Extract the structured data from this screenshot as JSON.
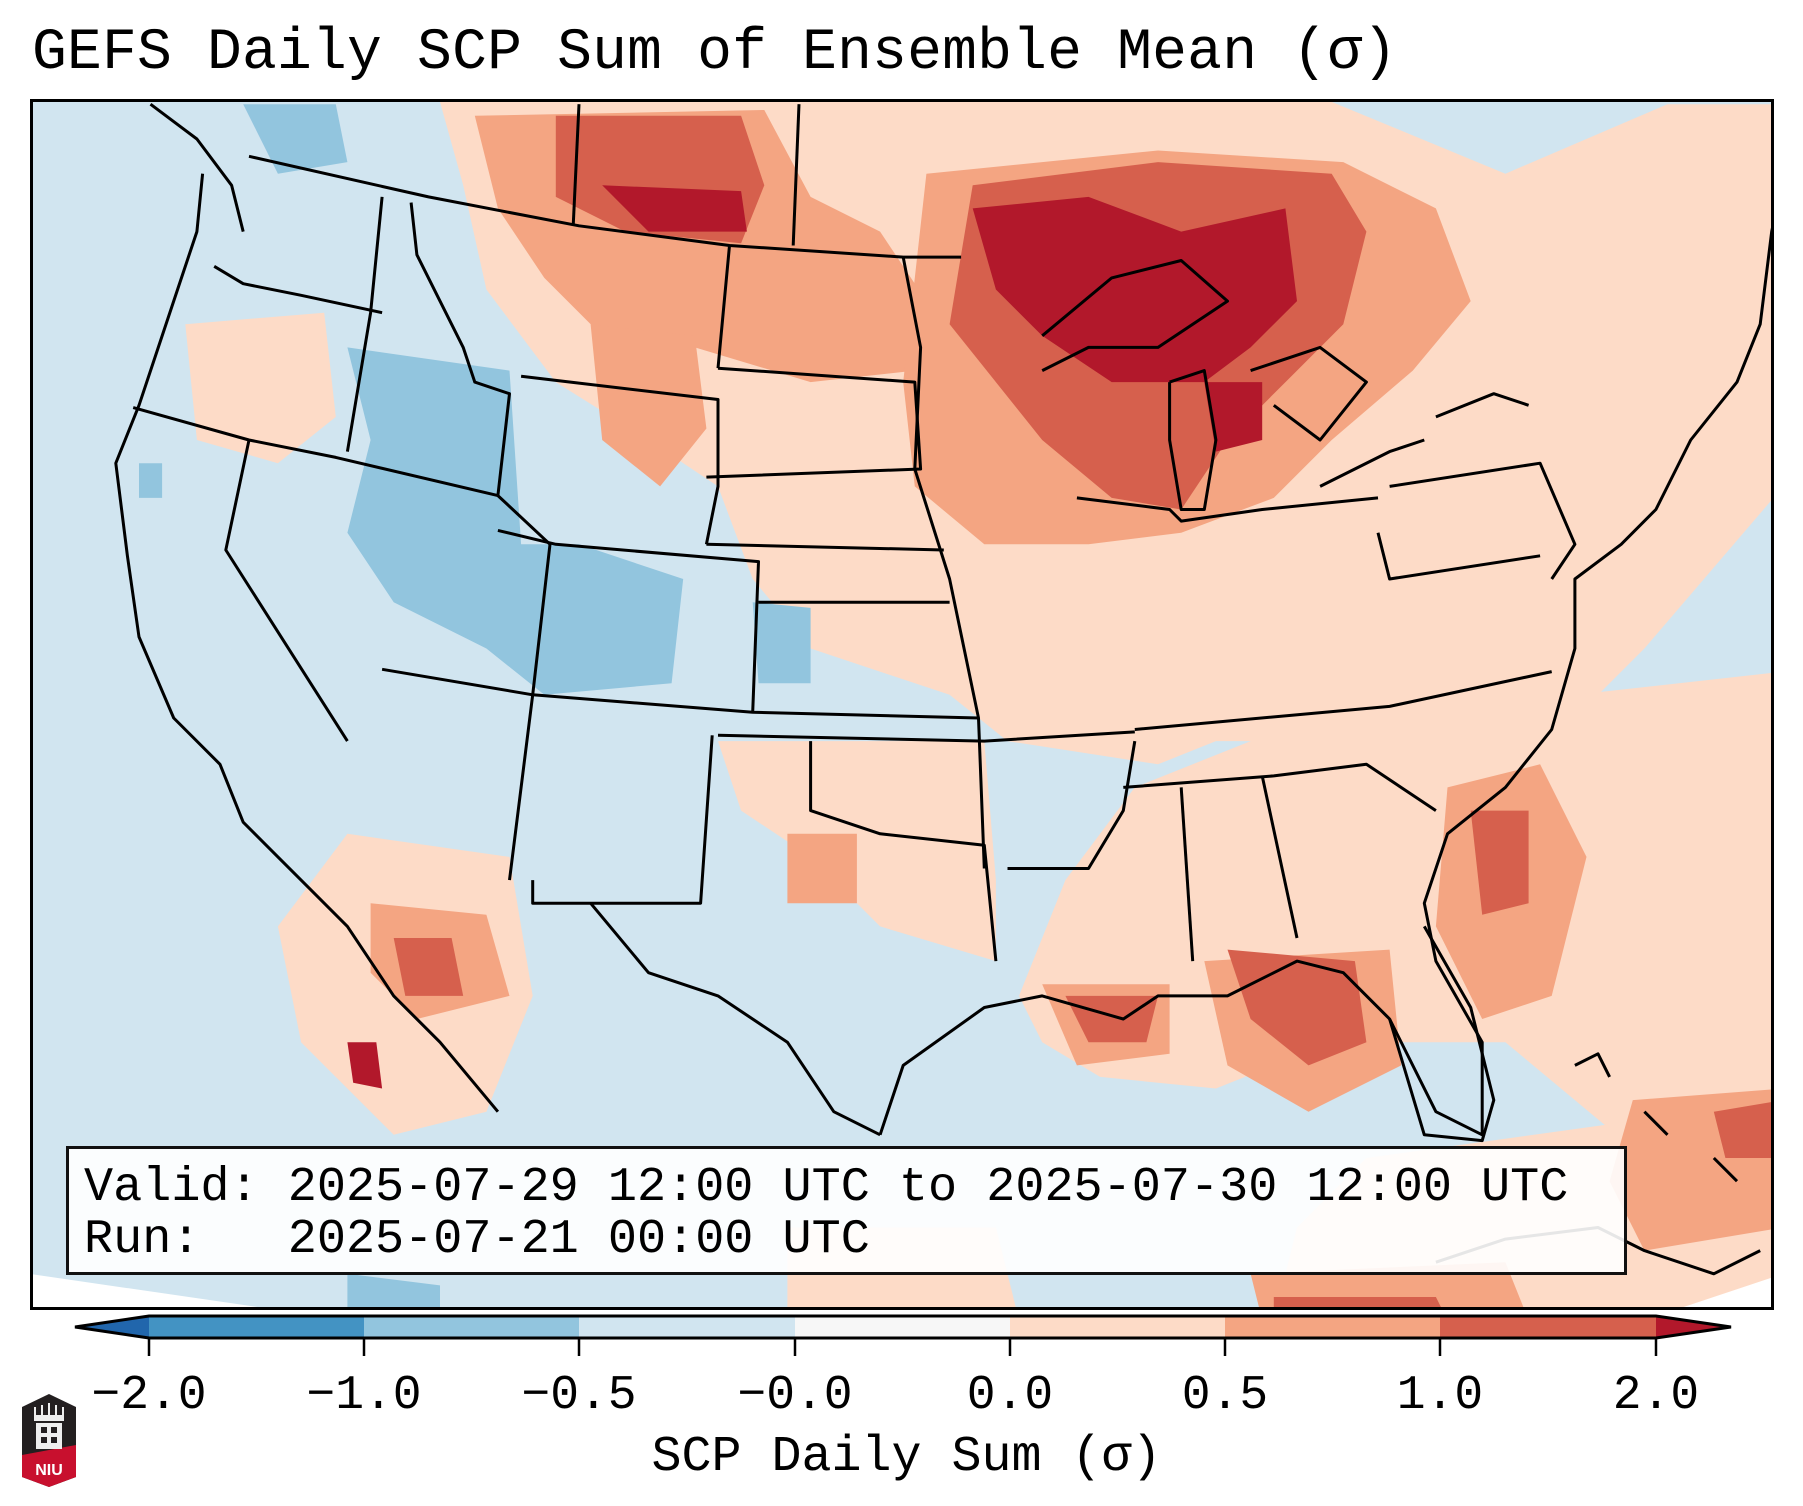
{
  "title": "GEFS Daily SCP Sum of Ensemble Mean (σ)",
  "info_box": {
    "valid_line": "Valid: 2025-07-29 12:00 UTC to 2025-07-30 12:00 UTC",
    "run_line": "Run:   2025-07-21 00:00 UTC"
  },
  "colorbar": {
    "label": "SCP Daily Sum (σ)",
    "tick_labels": [
      "−2.0",
      "−1.0",
      "−0.5",
      "−0.0",
      "0.0",
      "0.5",
      "1.0",
      "2.0"
    ],
    "bins": [
      {
        "range": "< -2.0",
        "color": "#2166ac"
      },
      {
        "range": "-2.0 to -1.0",
        "color": "#4393c3"
      },
      {
        "range": "-1.0 to -0.5",
        "color": "#92c5de"
      },
      {
        "range": "-0.5 to -0.0",
        "color": "#d1e5f0"
      },
      {
        "range": "-0.0 to 0.0",
        "color": "#f7f7f7"
      },
      {
        "range": "0.0 to 0.5",
        "color": "#fddbc7"
      },
      {
        "range": "0.5 to 1.0",
        "color": "#f4a582"
      },
      {
        "range": "1.0 to 2.0",
        "color": "#d6604d"
      },
      {
        "range": "> 2.0",
        "color": "#b2182b"
      }
    ],
    "extend": "both"
  },
  "map": {
    "region": "Continental United States",
    "background_value_color": "#d1e5f0",
    "ocean_outside_domain_color": "#ffffff",
    "highlights": [
      {
        "area": "Upper Midwest / Great Lakes / Ontario",
        "level": "> 2.0"
      },
      {
        "area": "Montana / southern Saskatchewan",
        "level": "1.0 to 2.0"
      },
      {
        "area": "Northern Plains",
        "level": "0.5 to 1.0"
      },
      {
        "area": "Great Basin / Utah / Colorado",
        "level": "-1.0 to -0.5"
      },
      {
        "area": "Gulf Coast / Florida Panhandle",
        "level": "1.0 to 2.0"
      },
      {
        "area": "Southeast Atlantic coast offshore",
        "level": "1.0 to 2.0"
      }
    ]
  },
  "logo": {
    "text": "NIU"
  }
}
